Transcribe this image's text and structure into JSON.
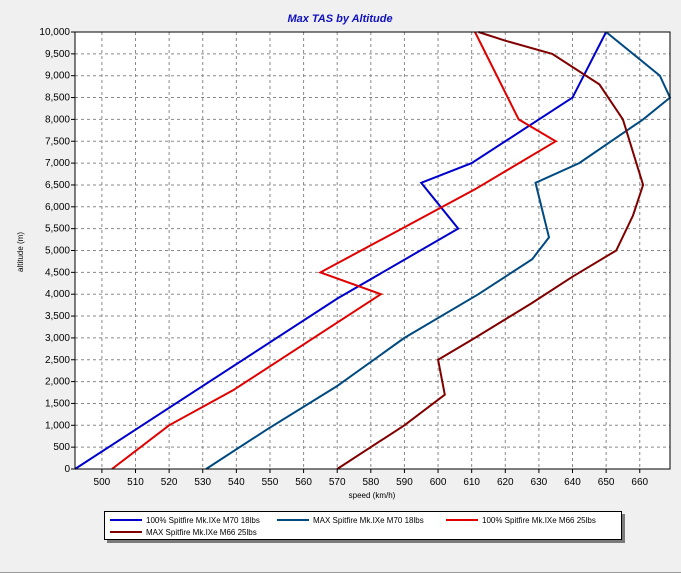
{
  "chart_data": {
    "type": "line",
    "title": "Max TAS by Altitude",
    "xlabel": "speed (km/h)",
    "ylabel": "altitude (m)",
    "xlim": [
      492,
      669
    ],
    "ylim": [
      0,
      10000
    ],
    "xticks": [
      "500",
      "510",
      "520",
      "530",
      "540",
      "550",
      "560",
      "570",
      "580",
      "590",
      "600",
      "610",
      "620",
      "630",
      "640",
      "650",
      "660"
    ],
    "yticks": [
      "0",
      "500",
      "1,000",
      "1,500",
      "2,000",
      "2,500",
      "3,000",
      "3,500",
      "4,000",
      "4,500",
      "5,000",
      "5,500",
      "6,000",
      "6,500",
      "7,000",
      "7,500",
      "8,000",
      "8,500",
      "9,000",
      "9,500",
      "10,000"
    ],
    "grid": true,
    "legend_position": "bottom",
    "series": [
      {
        "name": "100% Spitfire Mk.IXe M70 18lbs",
        "color": "#0000cc",
        "x": [
          492,
          570,
          606,
          595,
          610,
          640,
          650
        ],
        "y": [
          0,
          3900,
          5500,
          6550,
          7000,
          8500,
          10000
        ]
      },
      {
        "name": "MAX Spitfire Mk.IXe M70 18lbs",
        "color": "#004a80",
        "x": [
          531,
          549,
          570,
          590,
          612,
          628,
          633,
          629,
          642,
          661,
          669,
          666,
          650
        ],
        "y": [
          0,
          900,
          1900,
          3000,
          4000,
          4800,
          5300,
          6550,
          7000,
          8000,
          8500,
          9000,
          10000
        ]
      },
      {
        "name": "100% Spitfire Mk.IXe M66 25lbs",
        "color": "#e00000",
        "x": [
          503,
          520,
          539,
          583,
          565,
          611,
          635,
          624,
          611
        ],
        "y": [
          0,
          1000,
          1800,
          4000,
          4500,
          6400,
          7500,
          8000,
          10000
        ]
      },
      {
        "name": "MAX Spitfire Mk.IXe M66 25lbs",
        "color": "#800000",
        "x": [
          570,
          590,
          602,
          600,
          611,
          628,
          640,
          653,
          658,
          661,
          655,
          648,
          634,
          620,
          612
        ],
        "y": [
          0,
          1000,
          1700,
          2500,
          3000,
          3800,
          4400,
          5000,
          5800,
          6500,
          8000,
          8800,
          9500,
          9800,
          10000
        ]
      }
    ]
  }
}
